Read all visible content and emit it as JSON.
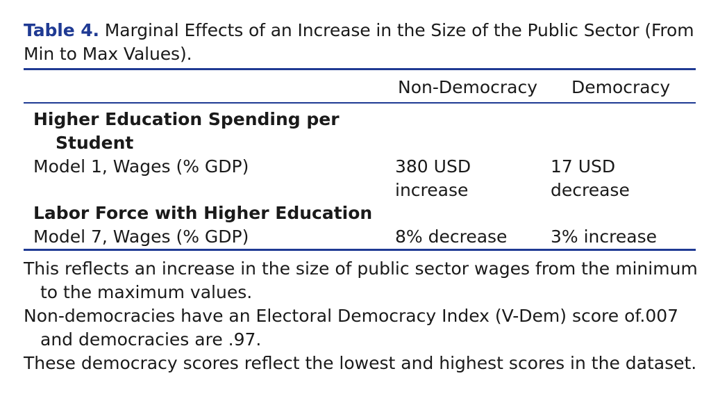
{
  "caption": {
    "label": "Table 4.",
    "text": " Marginal Effects of an Increase in the Size of the Public Sector (From Min to Max Values)."
  },
  "table": {
    "columns": [
      "Non-Democracy",
      "Democracy"
    ],
    "sections": [
      {
        "title_line1": "Higher Education Spending per",
        "title_line2": "Student",
        "row_label": "Model 1, Wages (% GDP)",
        "non_democracy_line1": "380 USD",
        "non_democracy_line2": "increase",
        "democracy_line1": "17 USD",
        "democracy_line2": "decrease"
      },
      {
        "title_line1": "Labor Force with Higher Education",
        "row_label": "Model 7, Wages (% GDP)",
        "non_democracy_line1": "8% decrease",
        "democracy_line1": "3% increase"
      }
    ]
  },
  "notes": [
    "This reflects an increase in the size of public sector wages from the minimum to the maximum values.",
    "Non-democracies have an Electoral Democracy Index (V-Dem) score of.007 and democracies are .97.",
    "These democracy scores reflect the lowest and highest scores in the dataset."
  ]
}
